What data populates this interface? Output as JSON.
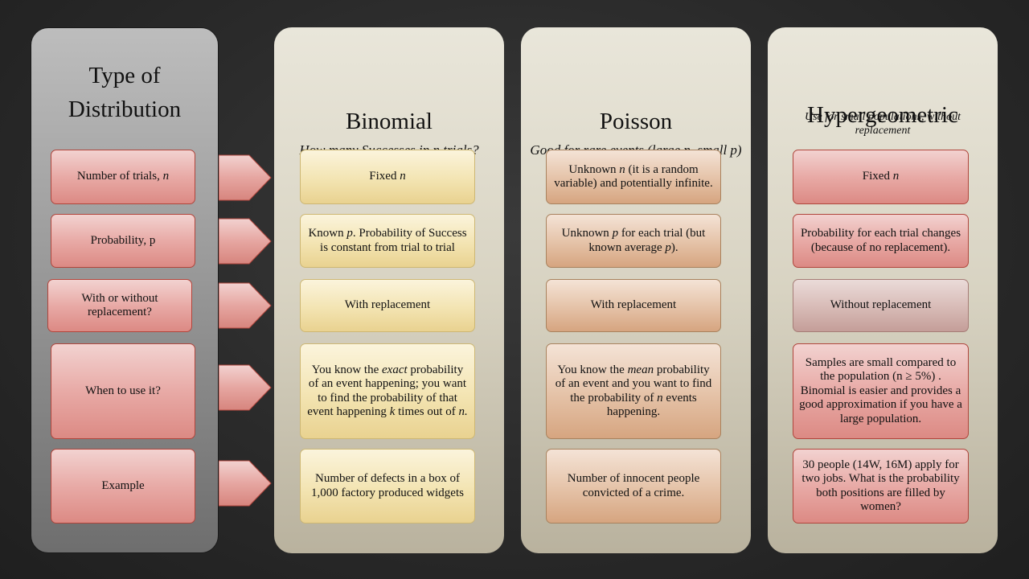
{
  "labels": {
    "title_line1": "Type of",
    "title_line2": "Distribution",
    "rows": {
      "trials": "Number of trials, ",
      "trials_var": "n",
      "probability": "Probability, p",
      "replacement": "With or without replacement?",
      "when": "When to use it?",
      "example": "Example"
    }
  },
  "binomial": {
    "title": "Binomial",
    "subtitle": "How many Successes in n trials?",
    "trials": "Fixed ",
    "trials_var": "n",
    "prob_a": "Known ",
    "prob_var": "p",
    "prob_b": ". Probability of Success  is constant from trial to trial",
    "replacement": "With replacement",
    "when_a": "You know the ",
    "when_em": "exact",
    "when_b": " probability of an event happening; you want to find the probability of  that event happening ",
    "when_k": "k",
    "when_c": " times out of ",
    "when_n": "n.",
    "example": "Number of defects in a box of 1,000 factory produced widgets"
  },
  "poisson": {
    "title": "Poisson",
    "subtitle": "Good for rare events (large n, small p)",
    "trials_a": "Unknown ",
    "trials_var": "n",
    "trials_b": " (it is a random variable) and potentially infinite.",
    "prob_a": "Unknown ",
    "prob_var": "p",
    "prob_b": " for each trial (but known average ",
    "prob_var2": "p",
    "prob_c": ").",
    "replacement": "With replacement",
    "when_a": "You know the ",
    "when_em": "mean",
    "when_b": " probability of an event and you want to find the probability of ",
    "when_n": "n",
    "when_c": " events happening.",
    "example": "Number of  innocent people convicted of a crime."
  },
  "hyper": {
    "title": "Hypergeometric",
    "subtitle": "Use for small populations, without replacement",
    "trials": "Fixed ",
    "trials_var": "n",
    "prob": "Probability for each trial changes (because of no replacement).",
    "replacement": "Without replacement",
    "when": "Samples are small compared to the population (n ≥ 5%) . Binomial is easier and provides a good approximation if you have a large population.",
    "example": "30 people (14W, 16M) apply for two jobs. What is the probability both positions are filled by women?"
  }
}
